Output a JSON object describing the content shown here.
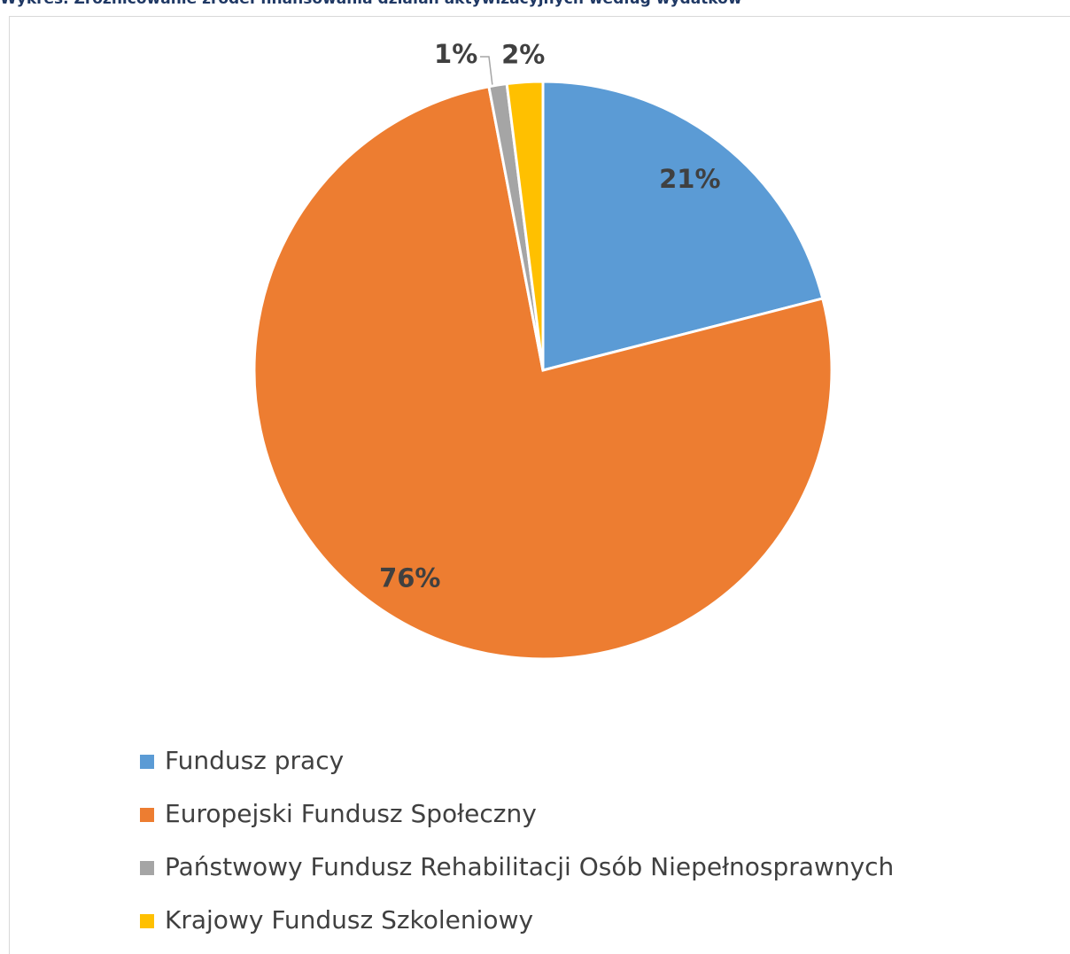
{
  "chart_data": {
    "type": "pie",
    "title": "Wykres. Zróżnicowanie źródeł finansowania działań aktywizacyjnych według wydatków",
    "categories": [
      "Fundusz pracy",
      "Europejski Fundusz Społeczny",
      "Państwowy Fundusz Rehabilitacji Osób Niepełnosprawnych",
      "Krajowy Fundusz Szkoleniowy"
    ],
    "values": [
      21,
      76,
      1,
      2
    ],
    "colors": [
      "#5b9bd5",
      "#ed7d31",
      "#a5a5a5",
      "#ffc000"
    ],
    "legend": "bottom"
  }
}
